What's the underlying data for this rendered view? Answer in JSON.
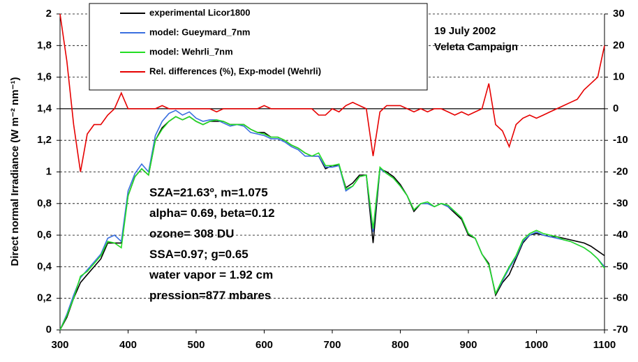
{
  "chart_data": {
    "type": "line",
    "ylabel": "Direct normal Irradiance (W m⁻² nm⁻¹)",
    "annotations": [
      "19 July 2002",
      "Veleta Campaign",
      "SZA=21.63º, m=1.075",
      "alpha= 0.69, beta=0.12",
      "ozone= 308  DU",
      "SSA=0.97; g=0.65",
      "water vapor = 1.92 cm",
      "pression=877 mbares"
    ],
    "x": [
      300,
      310,
      320,
      330,
      340,
      350,
      360,
      370,
      380,
      390,
      400,
      410,
      420,
      430,
      440,
      450,
      460,
      470,
      480,
      490,
      500,
      510,
      520,
      530,
      540,
      550,
      560,
      570,
      580,
      590,
      600,
      610,
      620,
      630,
      640,
      650,
      660,
      670,
      680,
      690,
      700,
      710,
      720,
      730,
      740,
      750,
      760,
      770,
      780,
      790,
      800,
      810,
      820,
      830,
      840,
      850,
      860,
      870,
      880,
      890,
      900,
      910,
      920,
      930,
      940,
      950,
      960,
      970,
      980,
      990,
      1000,
      1010,
      1020,
      1030,
      1040,
      1050,
      1060,
      1070,
      1080,
      1090,
      1100
    ],
    "series": [
      {
        "name": "experimental Licor1800",
        "color": "#000000",
        "values": [
          0.0,
          0.08,
          0.2,
          0.3,
          0.35,
          0.4,
          0.45,
          0.55,
          0.55,
          0.55,
          0.85,
          0.97,
          1.02,
          0.98,
          1.2,
          1.28,
          1.32,
          1.35,
          1.33,
          1.35,
          1.32,
          1.3,
          1.32,
          1.32,
          1.32,
          1.3,
          1.3,
          1.3,
          1.27,
          1.25,
          1.25,
          1.22,
          1.22,
          1.2,
          1.17,
          1.15,
          1.12,
          1.1,
          1.1,
          1.02,
          1.04,
          1.04,
          0.9,
          0.93,
          0.98,
          0.98,
          0.55,
          1.02,
          1.0,
          0.97,
          0.92,
          0.85,
          0.75,
          0.8,
          0.8,
          0.78,
          0.8,
          0.78,
          0.74,
          0.7,
          0.6,
          0.58,
          0.48,
          0.42,
          0.22,
          0.3,
          0.35,
          0.45,
          0.55,
          0.6,
          0.61,
          0.6,
          0.59,
          0.59,
          0.58,
          0.57,
          0.56,
          0.55,
          0.53,
          0.5,
          0.47
        ]
      },
      {
        "name": "model: Gueymard_7nm",
        "color": "#3a6fe0",
        "values": [
          0.0,
          0.1,
          0.22,
          0.33,
          0.38,
          0.43,
          0.48,
          0.58,
          0.6,
          0.56,
          0.88,
          0.99,
          1.05,
          1.0,
          1.23,
          1.32,
          1.37,
          1.39,
          1.36,
          1.38,
          1.34,
          1.32,
          1.33,
          1.33,
          1.31,
          1.29,
          1.3,
          1.29,
          1.25,
          1.24,
          1.23,
          1.21,
          1.21,
          1.19,
          1.16,
          1.14,
          1.1,
          1.1,
          1.1,
          1.03,
          1.03,
          1.04,
          0.88,
          0.91,
          0.97,
          0.98,
          0.62,
          1.02,
          0.99,
          0.96,
          0.91,
          0.85,
          0.76,
          0.8,
          0.8,
          0.78,
          0.8,
          0.78,
          0.75,
          0.71,
          0.61,
          0.58,
          0.48,
          0.41,
          0.23,
          0.31,
          0.39,
          0.46,
          0.56,
          0.6,
          0.62,
          0.6,
          0.59,
          0.58,
          0.57,
          0.56,
          0.54,
          0.52,
          0.49,
          0.45,
          0.4
        ]
      },
      {
        "name": "model: Wehrli_7nm",
        "color": "#22dd22",
        "values": [
          0.0,
          0.09,
          0.2,
          0.34,
          0.37,
          0.42,
          0.47,
          0.56,
          0.55,
          0.52,
          0.85,
          0.97,
          1.02,
          0.98,
          1.2,
          1.27,
          1.32,
          1.35,
          1.33,
          1.35,
          1.32,
          1.3,
          1.32,
          1.33,
          1.32,
          1.3,
          1.3,
          1.3,
          1.27,
          1.25,
          1.24,
          1.22,
          1.22,
          1.2,
          1.17,
          1.15,
          1.12,
          1.1,
          1.12,
          1.04,
          1.04,
          1.05,
          0.89,
          0.91,
          0.97,
          0.98,
          0.64,
          1.03,
          0.99,
          0.96,
          0.91,
          0.85,
          0.76,
          0.8,
          0.81,
          0.78,
          0.8,
          0.79,
          0.75,
          0.71,
          0.61,
          0.58,
          0.48,
          0.41,
          0.23,
          0.32,
          0.4,
          0.47,
          0.57,
          0.61,
          0.63,
          0.61,
          0.6,
          0.59,
          0.57,
          0.56,
          0.54,
          0.52,
          0.49,
          0.45,
          0.39
        ]
      },
      {
        "name": "Rel. differences (%),  Exp-model (Wehrli)",
        "color": "#e60000",
        "axis": "y2",
        "values": [
          30,
          15,
          -5,
          -20,
          -8,
          -5,
          -5,
          -2,
          0,
          5,
          0,
          0,
          0,
          0,
          0,
          1,
          0,
          0,
          0,
          0,
          0,
          0,
          0,
          -1,
          0,
          0,
          0,
          0,
          0,
          0,
          1,
          0,
          0,
          0,
          0,
          0,
          0,
          0,
          -2,
          -2,
          0,
          -1,
          1,
          2,
          1,
          0,
          -15,
          -1,
          1,
          1,
          1,
          0,
          -1,
          0,
          -1,
          0,
          0,
          -1,
          -2,
          -1,
          -2,
          -1,
          0,
          8,
          -5,
          -7,
          -12,
          -5,
          -3,
          -2,
          -3,
          -2,
          -1,
          0,
          1,
          2,
          3,
          6,
          8,
          10,
          20
        ]
      }
    ],
    "xlim": [
      300,
      1100
    ],
    "xticks": [
      300,
      400,
      500,
      600,
      700,
      800,
      900,
      1000,
      1100
    ],
    "ylim": [
      0,
      2
    ],
    "yticks": [
      0,
      {
        "value": 0.2,
        "label": "0,2"
      },
      {
        "value": 0.4,
        "label": "0,4"
      },
      {
        "value": 0.6,
        "label": "0,6"
      },
      {
        "value": 0.8,
        "label": "0,8"
      },
      1,
      {
        "value": 1.2,
        "label": "1,2"
      },
      {
        "value": 1.4,
        "label": "1,4"
      },
      {
        "value": 1.6,
        "label": "1,6"
      },
      {
        "value": 1.8,
        "label": "1,8"
      },
      2
    ],
    "y2lim": [
      -70,
      30
    ],
    "y2ticks": [
      -70,
      -60,
      -50,
      -40,
      -30,
      -20,
      -10,
      0,
      10,
      20,
      30
    ],
    "grid": true
  }
}
